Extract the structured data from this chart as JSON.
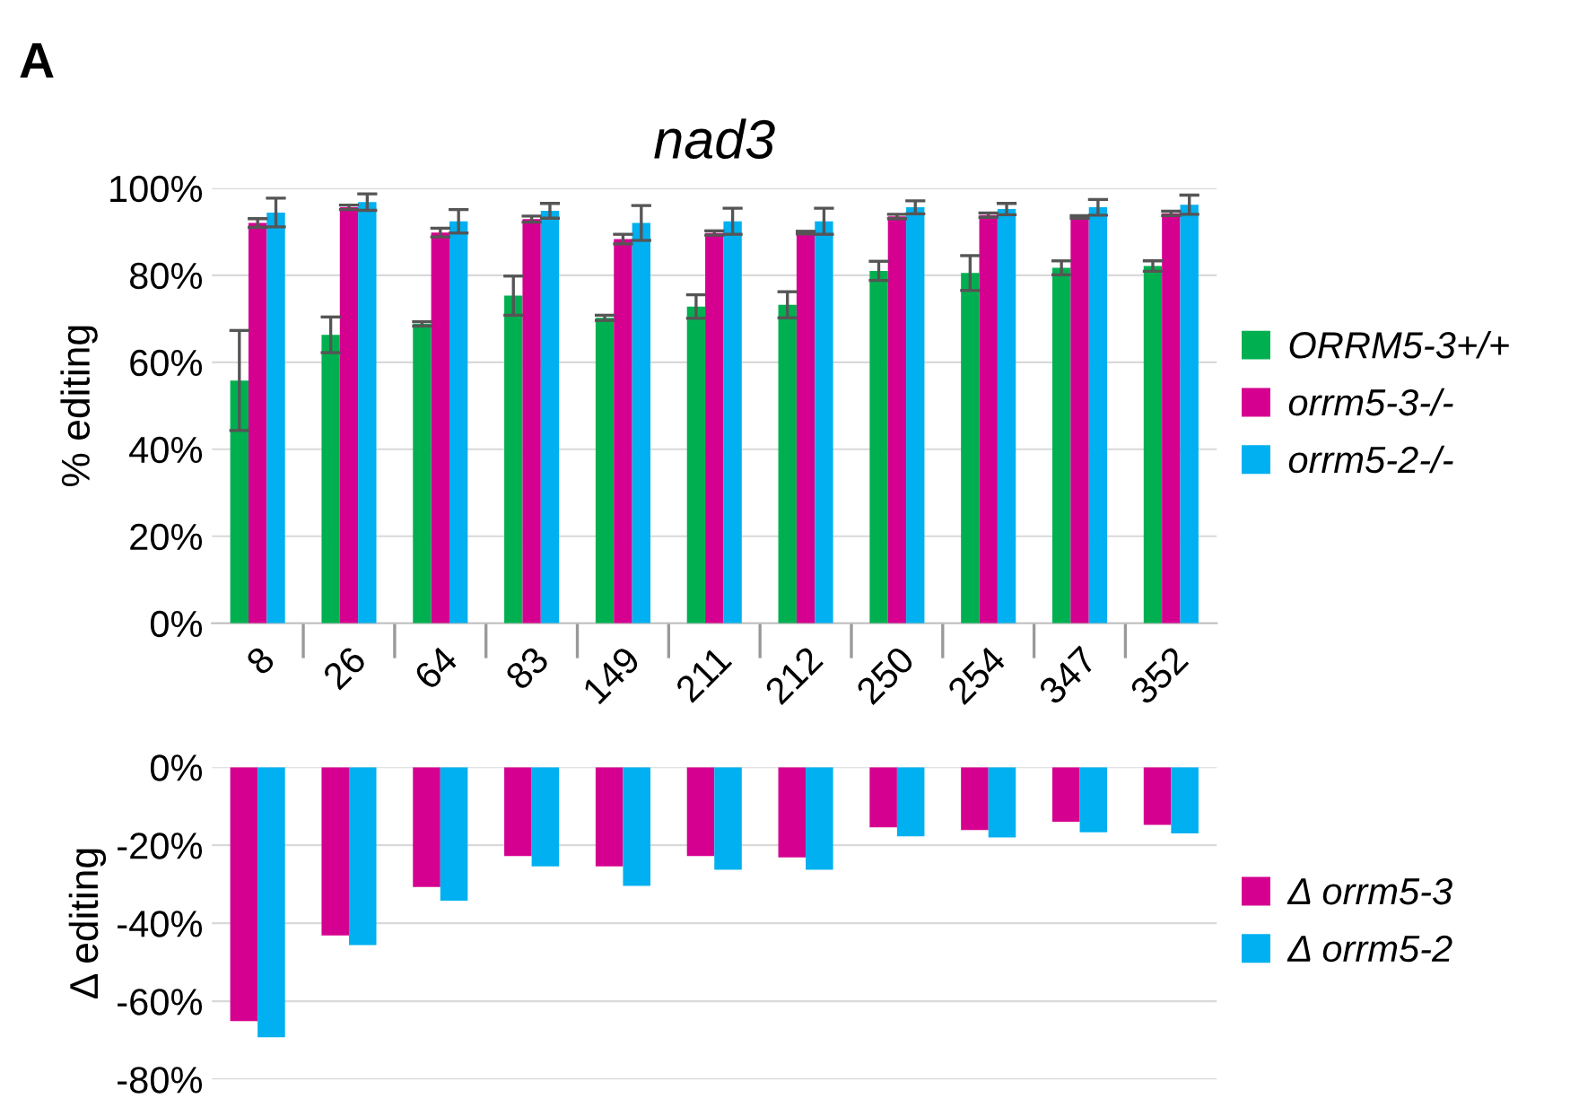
{
  "chart_data": [
    {
      "type": "bar",
      "title": "nad3",
      "ylabel": "% editing",
      "annotations": [
        "A"
      ],
      "categories": [
        "8",
        "26",
        "64",
        "83",
        "149",
        "211",
        "212",
        "250",
        "254",
        "347",
        "352"
      ],
      "series": [
        {
          "name": "ORRM5-3+/+",
          "color": "#00b050",
          "values": [
            55.8,
            66.3,
            68.8,
            75.3,
            70.2,
            72.8,
            73.2,
            81.0,
            80.5,
            81.7,
            82.1
          ],
          "errors": [
            11.5,
            4.1,
            0.5,
            4.5,
            0.6,
            2.7,
            3.0,
            2.2,
            4.0,
            1.6,
            1.2
          ]
        },
        {
          "name": "orrm5-3-/-",
          "color": "#d5008f",
          "values": [
            92.0,
            95.6,
            89.8,
            92.9,
            88.3,
            89.7,
            89.8,
            93.5,
            93.8,
            93.4,
            94.2
          ],
          "errors": [
            1.0,
            0.5,
            1.0,
            0.7,
            1.1,
            0.5,
            0.3,
            0.5,
            0.5,
            0.3,
            0.5
          ]
        },
        {
          "name": "orrm5-2-/-",
          "color": "#00b0f0",
          "values": [
            94.4,
            96.8,
            92.4,
            94.8,
            92.0,
            92.4,
            92.4,
            95.6,
            95.2,
            95.6,
            96.2
          ],
          "errors": [
            3.3,
            1.9,
            2.7,
            1.7,
            4.0,
            3.0,
            3.0,
            1.5,
            1.3,
            1.8,
            2.2
          ]
        }
      ],
      "ylim": [
        0,
        100
      ],
      "yticks": [
        {
          "value": 0,
          "label": "0%"
        },
        {
          "value": 20,
          "label": "20%"
        },
        {
          "value": 40,
          "label": "40%"
        },
        {
          "value": 60,
          "label": "60%"
        },
        {
          "value": 80,
          "label": "80%"
        },
        {
          "value": 100,
          "label": "100%"
        }
      ],
      "grid": "y",
      "legend": "right"
    },
    {
      "type": "bar",
      "ylabel": "Δ editing",
      "categories": [
        null,
        null,
        null,
        null,
        null,
        null,
        null,
        null,
        null,
        null,
        null
      ],
      "series": [
        {
          "name": "Δ orrm5-3",
          "color": "#d5008f",
          "values": [
            -65.1,
            -43.1,
            -30.7,
            -22.8,
            -25.4,
            -22.8,
            -23.1,
            -15.4,
            -16.1,
            -14.0,
            -14.8
          ]
        },
        {
          "name": "Δ orrm5-2",
          "color": "#00b0f0",
          "values": [
            -69.2,
            -45.6,
            -34.2,
            -25.4,
            -30.4,
            -26.3,
            -26.3,
            -17.7,
            -18.0,
            -16.7,
            -17.0
          ]
        }
      ],
      "ylim": [
        -80,
        0
      ],
      "yticks": [
        {
          "value": -80,
          "label": "-80%"
        },
        {
          "value": -60,
          "label": "-60%"
        },
        {
          "value": -40,
          "label": "-40%"
        },
        {
          "value": -20,
          "label": "-20%"
        },
        {
          "value": 0,
          "label": "0%"
        }
      ],
      "grid": "y",
      "legend": "right"
    }
  ]
}
